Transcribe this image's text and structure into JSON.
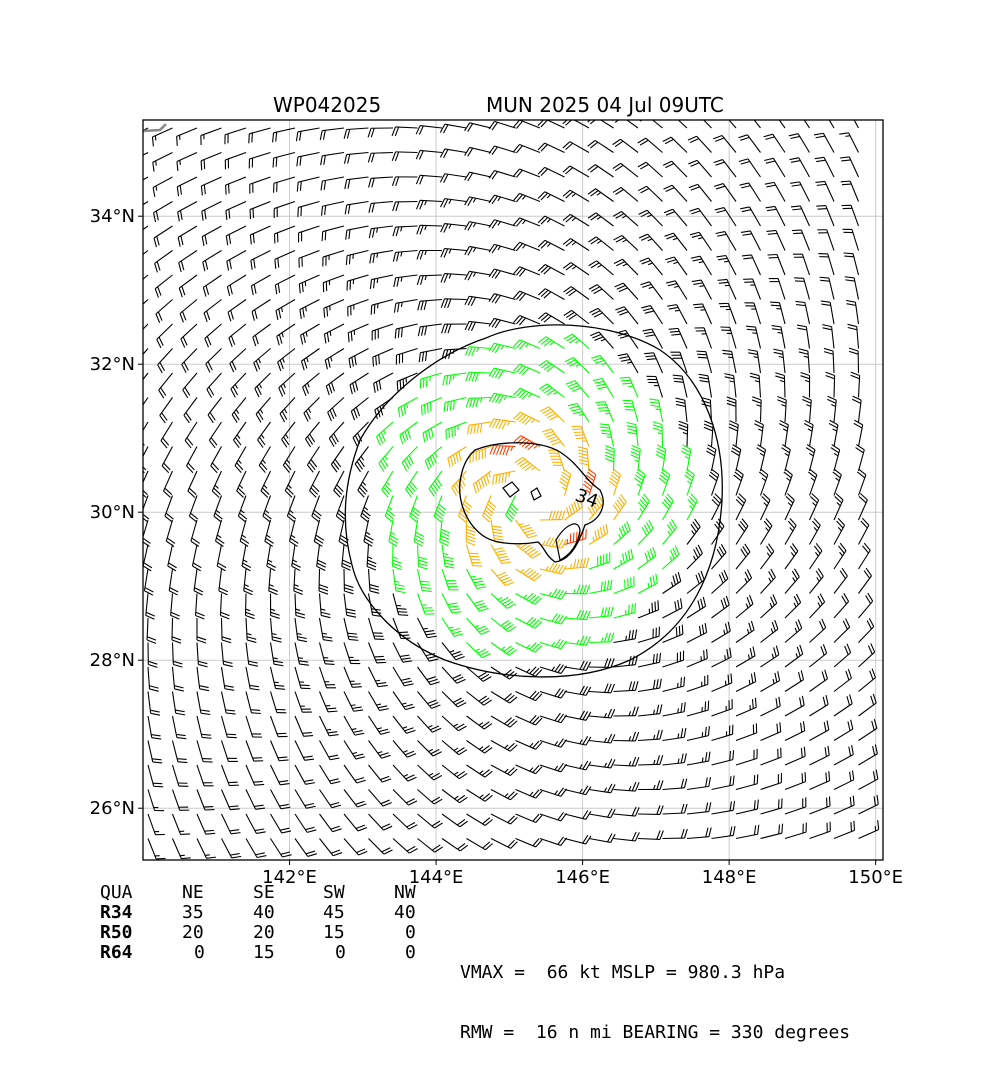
{
  "title": {
    "storm_id": "WP042025",
    "info": "MUN 2025 04 Jul 09UTC"
  },
  "map": {
    "lon_range": [
      140,
      150.1
    ],
    "lat_range": [
      25.3,
      35.3
    ],
    "lon_ticks": [
      {
        "value": 142,
        "label": "142°E"
      },
      {
        "value": 144,
        "label": "144°E"
      },
      {
        "value": 146,
        "label": "146°E"
      },
      {
        "value": 148,
        "label": "148°E"
      },
      {
        "value": 150,
        "label": "150°E"
      }
    ],
    "lat_ticks": [
      {
        "value": 26,
        "label": "26°N"
      },
      {
        "value": 28,
        "label": "28°N"
      },
      {
        "value": 30,
        "label": "30°N"
      },
      {
        "value": 32,
        "label": "32°N"
      },
      {
        "value": 34,
        "label": "34°N"
      }
    ],
    "center": {
      "lon": 145.3,
      "lat": 30.2
    },
    "contour_label": "34",
    "colors": {
      "below_34kt": "#000000",
      "r34_50": "#00ff00",
      "r50_64": "#ffb000",
      "r64_plus": "#ff4000",
      "grid": "#cccccc"
    }
  },
  "quadrant_table": {
    "headers": [
      "QUA",
      "NE",
      "SE",
      "SW",
      "NW"
    ],
    "rows": [
      {
        "label": "R34",
        "values": [
          "35",
          "40",
          "45",
          "40"
        ]
      },
      {
        "label": "R50",
        "values": [
          "20",
          "20",
          "15",
          "0"
        ]
      },
      {
        "label": "R64",
        "values": [
          "0",
          "15",
          "0",
          "0"
        ]
      }
    ]
  },
  "stats": {
    "line1": "VMAX =  66 kt MSLP = 980.3 hPa",
    "line2": "RMW =  16 n mi BEARING = 330 degrees"
  }
}
